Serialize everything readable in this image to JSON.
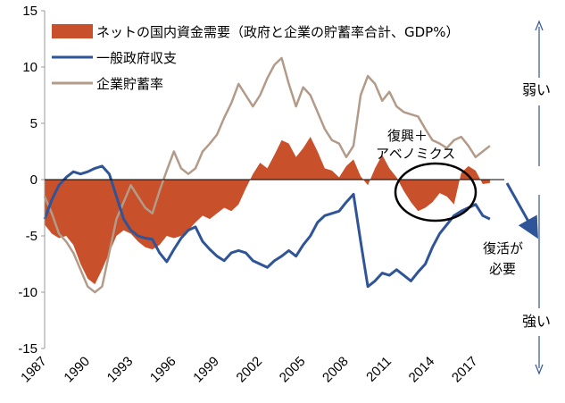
{
  "chart_data": {
    "type": "line",
    "title": "",
    "xlabel": "",
    "ylabel": "",
    "ylim": [
      -15,
      15
    ],
    "xlim": [
      1987,
      2019
    ],
    "y_ticks": [
      15,
      10,
      5,
      0,
      -5,
      -10,
      -15
    ],
    "x_ticks": [
      1987,
      1990,
      1993,
      1996,
      1999,
      2002,
      2005,
      2008,
      2011,
      2014,
      2017
    ],
    "grid": false,
    "legend_position": "top-left",
    "series": [
      {
        "name": "ネットの国内資金需要（政府と企業の貯蓄率合計、GDP%）",
        "kind": "area",
        "color": "#c8502a",
        "x": [
          1987,
          1987.5,
          1988,
          1988.5,
          1989,
          1989.5,
          1990,
          1990.5,
          1991,
          1991.5,
          1992,
          1992.5,
          1993,
          1993.5,
          1994,
          1994.5,
          1995,
          1995.5,
          1996,
          1996.5,
          1997,
          1997.5,
          1998,
          1998.5,
          1999,
          1999.5,
          2000,
          2000.5,
          2001,
          2001.5,
          2002,
          2002.5,
          2003,
          2003.5,
          2004,
          2004.5,
          2005,
          2005.5,
          2006,
          2006.5,
          2007,
          2007.5,
          2008,
          2008.5,
          2009,
          2009.5,
          2010,
          2010.5,
          2011,
          2011.5,
          2012,
          2012.5,
          2013,
          2013.5,
          2014,
          2014.5,
          2015,
          2015.5,
          2016,
          2016.5,
          2017,
          2017.5,
          2018
        ],
        "values": [
          -4.0,
          -4.8,
          -5.2,
          -5.0,
          -5.8,
          -7.5,
          -8.8,
          -9.3,
          -8.0,
          -6.5,
          -5.0,
          -4.5,
          -4.8,
          -5.5,
          -6.0,
          -6.2,
          -5.8,
          -5.0,
          -5.2,
          -5.0,
          -4.5,
          -3.8,
          -3.2,
          -3.5,
          -3.0,
          -2.5,
          -2.8,
          -2.2,
          -0.8,
          0.5,
          1.5,
          1.0,
          2.2,
          3.5,
          3.2,
          2.0,
          2.8,
          3.8,
          2.5,
          1.0,
          0.8,
          0.2,
          1.2,
          1.8,
          0.3,
          -0.5,
          1.0,
          2.2,
          1.0,
          0.2,
          -1.0,
          -2.0,
          -2.8,
          -2.5,
          -2.0,
          -1.2,
          -1.5,
          -2.2,
          0.6,
          1.2,
          0.8,
          -0.4,
          -0.3
        ]
      },
      {
        "name": "一般政府収支",
        "kind": "line",
        "color": "#2f5497",
        "x": [
          1987,
          1987.5,
          1988,
          1988.5,
          1989,
          1989.5,
          1990,
          1990.5,
          1991,
          1991.5,
          1992,
          1992.5,
          1993,
          1993.5,
          1994,
          1994.5,
          1995,
          1995.5,
          1996,
          1996.5,
          1997,
          1997.5,
          1998,
          1998.5,
          1999,
          1999.5,
          2000,
          2000.5,
          2001,
          2001.5,
          2002,
          2002.5,
          2003,
          2003.5,
          2004,
          2004.5,
          2005,
          2005.5,
          2006,
          2006.5,
          2007,
          2007.5,
          2008,
          2008.5,
          2009,
          2009.5,
          2010,
          2010.5,
          2011,
          2011.5,
          2012,
          2012.5,
          2013,
          2013.5,
          2014,
          2014.5,
          2015,
          2015.5,
          2016,
          2016.5,
          2017,
          2017.5,
          2018
        ],
        "values": [
          -3.5,
          -1.8,
          -0.5,
          0.2,
          0.7,
          0.5,
          0.7,
          1.0,
          1.2,
          0.5,
          -1.5,
          -3.5,
          -4.5,
          -5.0,
          -5.2,
          -5.3,
          -6.5,
          -7.3,
          -6.2,
          -5.2,
          -4.5,
          -4.2,
          -5.5,
          -6.2,
          -6.8,
          -7.2,
          -6.5,
          -6.3,
          -6.5,
          -7.2,
          -7.5,
          -7.8,
          -7.2,
          -6.8,
          -6.3,
          -6.8,
          -5.8,
          -5.0,
          -3.8,
          -3.2,
          -3.0,
          -2.8,
          -2.0,
          -1.3,
          -5.5,
          -9.5,
          -9.0,
          -8.3,
          -8.5,
          -8.0,
          -8.5,
          -9.0,
          -8.2,
          -7.5,
          -6.0,
          -4.8,
          -4.0,
          -3.2,
          -2.8,
          -2.5,
          -2.2,
          -3.2,
          -3.5
        ]
      },
      {
        "name": "企業貯蓄率",
        "kind": "line",
        "color": "#b39b8a",
        "x": [
          1987,
          1987.5,
          1988,
          1988.5,
          1989,
          1989.5,
          1990,
          1990.5,
          1991,
          1991.5,
          1992,
          1992.5,
          1993,
          1993.5,
          1994,
          1994.5,
          1995,
          1995.5,
          1996,
          1996.5,
          1997,
          1997.5,
          1998,
          1998.5,
          1999,
          1999.5,
          2000,
          2000.5,
          2001,
          2001.5,
          2002,
          2002.5,
          2003,
          2003.5,
          2004,
          2004.5,
          2005,
          2005.5,
          2006,
          2006.5,
          2007,
          2007.5,
          2008,
          2008.5,
          2009,
          2009.5,
          2010,
          2010.5,
          2011,
          2011.5,
          2012,
          2012.5,
          2013,
          2013.5,
          2014,
          2014.5,
          2015,
          2015.5,
          2016,
          2016.5,
          2017,
          2017.5,
          2018
        ],
        "values": [
          -1.5,
          -3.0,
          -4.8,
          -5.5,
          -6.5,
          -8.0,
          -9.5,
          -10.0,
          -9.5,
          -6.5,
          -3.5,
          -2.0,
          -0.5,
          -1.5,
          -2.5,
          -3.0,
          -1.0,
          0.8,
          2.5,
          1.0,
          0.5,
          1.0,
          2.5,
          3.2,
          4.0,
          5.5,
          6.8,
          8.5,
          7.5,
          6.5,
          7.5,
          9.0,
          10.2,
          10.8,
          8.5,
          6.5,
          8.2,
          7.5,
          6.0,
          4.5,
          3.5,
          3.2,
          2.0,
          3.0,
          7.5,
          9.2,
          8.5,
          7.0,
          7.8,
          6.5,
          6.0,
          5.8,
          5.6,
          4.5,
          3.5,
          3.2,
          2.8,
          3.5,
          3.8,
          3.0,
          2.0,
          2.5,
          3.0
        ]
      }
    ],
    "annotations": {
      "bubble_line1": "復興＋",
      "bubble_line2": "アベノミクス",
      "revival_line1": "復活が",
      "revival_line2": "必要",
      "weak": "弱い",
      "strong": "強い"
    },
    "colors": {
      "arrow": "#2f5497",
      "ellipse": "#000000"
    }
  }
}
